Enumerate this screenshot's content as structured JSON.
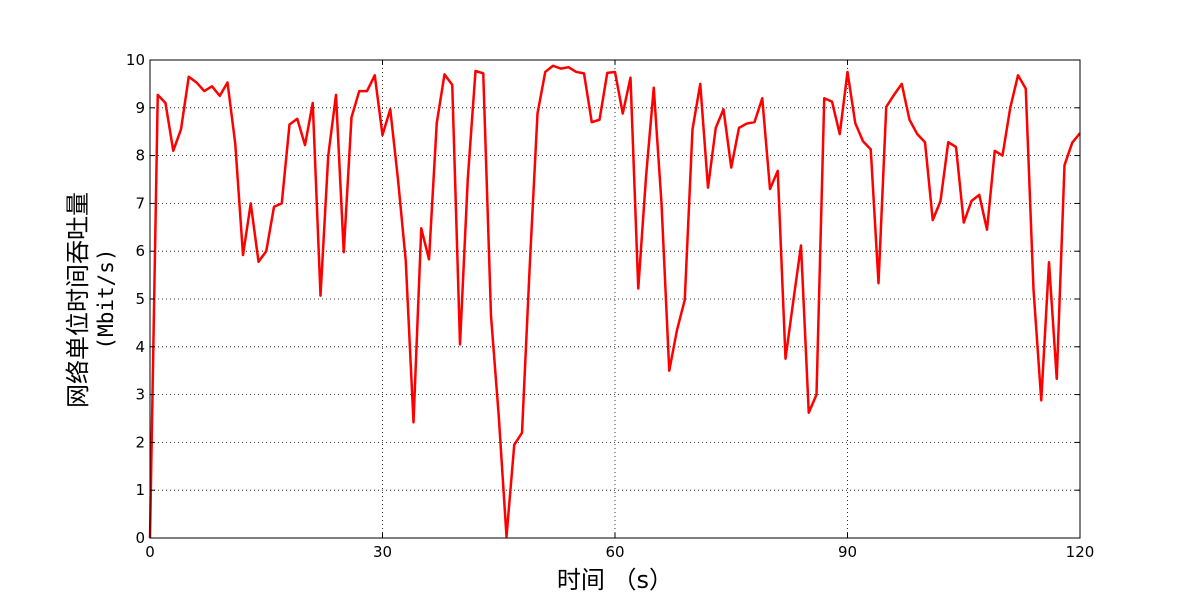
{
  "chart_data": {
    "type": "line",
    "title": "",
    "xlabel": "时间 （s）",
    "ylabel": "网络单位时间吞吐量",
    "ylabel_unit": "(Mbit/s)",
    "xlim": [
      0,
      120
    ],
    "ylim": [
      0,
      10
    ],
    "xticks": [
      "0",
      "30",
      "60",
      "90",
      "120"
    ],
    "yticks": [
      "0",
      "1",
      "2",
      "3",
      "4",
      "5",
      "6",
      "7",
      "8",
      "9",
      "10"
    ],
    "grid": true,
    "line_color": "#ff0000",
    "series": [
      {
        "points": [
          [
            0,
            0
          ],
          [
            1,
            9.27
          ],
          [
            2,
            9.1
          ],
          [
            3,
            8.1
          ],
          [
            4,
            8.55
          ],
          [
            5,
            9.65
          ],
          [
            6,
            9.53
          ],
          [
            7,
            9.35
          ],
          [
            8,
            9.45
          ],
          [
            9,
            9.25
          ],
          [
            10,
            9.53
          ],
          [
            11,
            8.25
          ],
          [
            12,
            5.92
          ],
          [
            13,
            7.0
          ],
          [
            14,
            5.78
          ],
          [
            15,
            6.0
          ],
          [
            16,
            6.93
          ],
          [
            17,
            7.0
          ],
          [
            18,
            8.65
          ],
          [
            19,
            8.77
          ],
          [
            20,
            8.22
          ],
          [
            21,
            9.1
          ],
          [
            22,
            5.07
          ],
          [
            23,
            8.0
          ],
          [
            24,
            9.27
          ],
          [
            25,
            5.98
          ],
          [
            26,
            8.8
          ],
          [
            27,
            9.35
          ],
          [
            28,
            9.35
          ],
          [
            29,
            9.68
          ],
          [
            30,
            8.43
          ],
          [
            31,
            8.97
          ],
          [
            32,
            7.5
          ],
          [
            33,
            5.8
          ],
          [
            34,
            2.42
          ],
          [
            35,
            6.48
          ],
          [
            36,
            5.83
          ],
          [
            37,
            8.68
          ],
          [
            38,
            9.7
          ],
          [
            39,
            9.48
          ],
          [
            40,
            4.05
          ],
          [
            41,
            7.5
          ],
          [
            42,
            9.77
          ],
          [
            43,
            9.72
          ],
          [
            44,
            4.65
          ],
          [
            45,
            2.55
          ],
          [
            46,
            0.03
          ],
          [
            47,
            1.95
          ],
          [
            48,
            2.2
          ],
          [
            49,
            5.7
          ],
          [
            50,
            8.88
          ],
          [
            51,
            9.75
          ],
          [
            52,
            9.88
          ],
          [
            53,
            9.82
          ],
          [
            54,
            9.85
          ],
          [
            55,
            9.75
          ],
          [
            56,
            9.72
          ],
          [
            57,
            8.7
          ],
          [
            58,
            8.75
          ],
          [
            59,
            9.73
          ],
          [
            60,
            9.75
          ],
          [
            61,
            8.88
          ],
          [
            62,
            9.63
          ],
          [
            63,
            5.22
          ],
          [
            64,
            7.55
          ],
          [
            65,
            9.42
          ],
          [
            66,
            7.0
          ],
          [
            67,
            3.5
          ],
          [
            68,
            4.35
          ],
          [
            69,
            4.98
          ],
          [
            70,
            8.55
          ],
          [
            71,
            9.5
          ],
          [
            72,
            7.33
          ],
          [
            73,
            8.58
          ],
          [
            74,
            8.97
          ],
          [
            75,
            7.75
          ],
          [
            76,
            8.58
          ],
          [
            77,
            8.67
          ],
          [
            78,
            8.7
          ],
          [
            79,
            9.2
          ],
          [
            80,
            7.3
          ],
          [
            81,
            7.68
          ],
          [
            82,
            3.75
          ],
          [
            83,
            4.95
          ],
          [
            84,
            6.12
          ],
          [
            85,
            2.62
          ],
          [
            86,
            3.0
          ],
          [
            87,
            9.2
          ],
          [
            88,
            9.13
          ],
          [
            89,
            8.45
          ],
          [
            90,
            9.75
          ],
          [
            91,
            8.68
          ],
          [
            92,
            8.3
          ],
          [
            93,
            8.13
          ],
          [
            94,
            5.33
          ],
          [
            95,
            9.02
          ],
          [
            96,
            9.27
          ],
          [
            97,
            9.5
          ],
          [
            98,
            8.75
          ],
          [
            99,
            8.45
          ],
          [
            100,
            8.28
          ],
          [
            101,
            6.65
          ],
          [
            102,
            7.05
          ],
          [
            103,
            8.28
          ],
          [
            104,
            8.18
          ],
          [
            105,
            6.6
          ],
          [
            106,
            7.05
          ],
          [
            107,
            7.18
          ],
          [
            108,
            6.45
          ],
          [
            109,
            8.1
          ],
          [
            110,
            8.0
          ],
          [
            111,
            9.0
          ],
          [
            112,
            9.68
          ],
          [
            113,
            9.4
          ],
          [
            114,
            5.2
          ],
          [
            115,
            2.88
          ],
          [
            116,
            5.77
          ],
          [
            117,
            3.33
          ],
          [
            118,
            7.8
          ],
          [
            119,
            8.27
          ],
          [
            120,
            8.47
          ]
        ]
      }
    ]
  }
}
